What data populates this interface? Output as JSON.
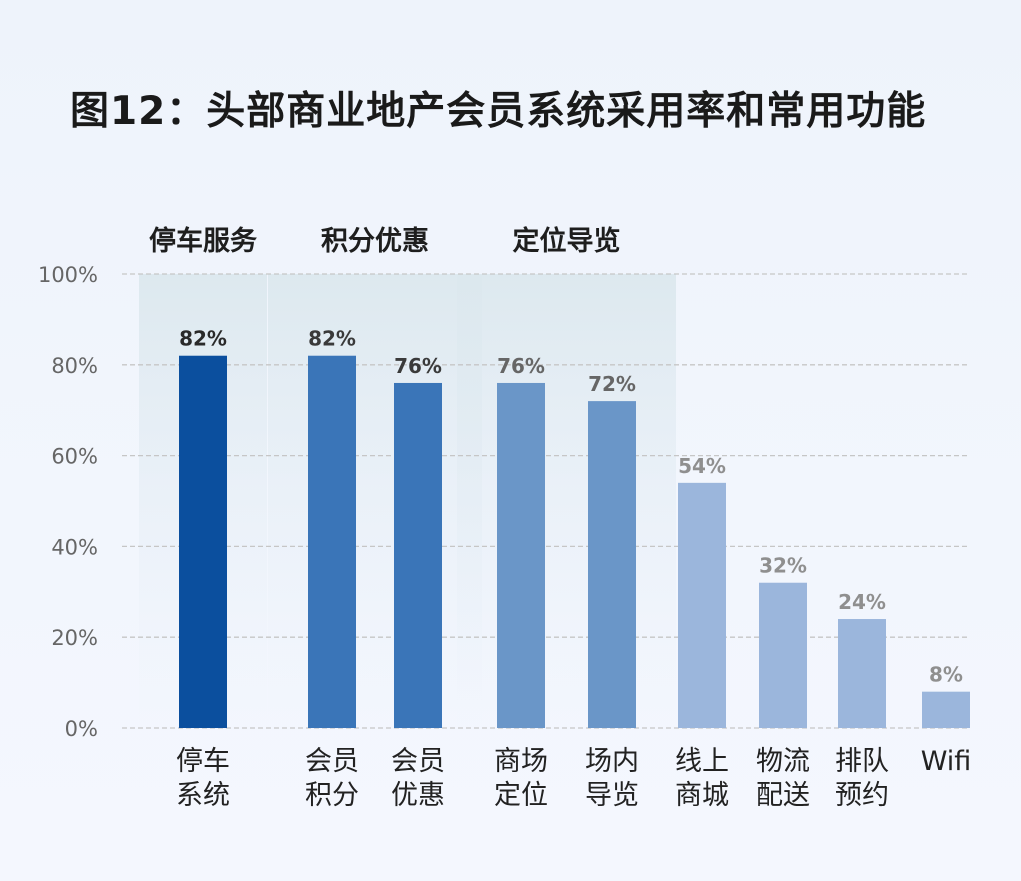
{
  "title": "图12：头部商业地产会员系统采用率和常用功能",
  "chart_data": {
    "type": "bar",
    "title": "图12：头部商业地产会员系统采用率和常用功能",
    "xlabel": "",
    "ylabel": "",
    "ylim": [
      0,
      100
    ],
    "y_ticks": [
      "0%",
      "20%",
      "40%",
      "60%",
      "80%",
      "100%"
    ],
    "grid": true,
    "categories": [
      [
        "停车",
        "系统"
      ],
      [
        "会员",
        "积分"
      ],
      [
        "会员",
        "优惠"
      ],
      [
        "商场",
        "定位"
      ],
      [
        "场内",
        "导览"
      ],
      [
        "线上",
        "商城"
      ],
      [
        "物流",
        "配送"
      ],
      [
        "排队",
        "预约"
      ],
      [
        "Wifi"
      ]
    ],
    "values": [
      82,
      82,
      76,
      76,
      72,
      54,
      32,
      24,
      8
    ],
    "value_labels": [
      "82%",
      "82%",
      "76%",
      "76%",
      "72%",
      "54%",
      "32%",
      "24%",
      "8%"
    ],
    "groups": [
      {
        "label": "停车服务",
        "members": [
          0
        ]
      },
      {
        "label": "积分优惠",
        "members": [
          1,
          2
        ]
      },
      {
        "label": "定位导览",
        "members": [
          3,
          4
        ]
      }
    ],
    "colors": {
      "bars": [
        "#0b4f9e",
        "#3a75b8",
        "#3a75b8",
        "#6a96c8",
        "#6a96c8",
        "#9bb6dc",
        "#9bb6dc",
        "#9bb6dc",
        "#9bb6dc"
      ],
      "value_labels": [
        "#2a2a2a",
        "#3a3a3a",
        "#3a3a3a",
        "#666666",
        "#666666",
        "#8f8f8f",
        "#8f8f8f",
        "#8f8f8f",
        "#8f8f8f"
      ],
      "group_band": "#dde9ef"
    }
  }
}
